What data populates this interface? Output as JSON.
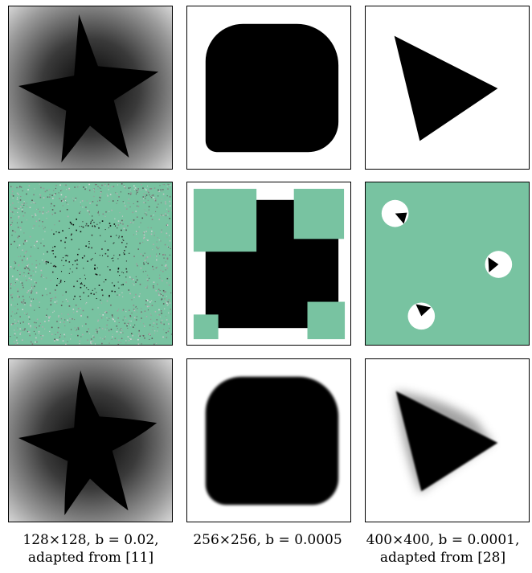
{
  "columns": [
    {
      "shape": "star",
      "caption_line1": "128×128, b = 0.02,",
      "caption_line2": "adapted from [11]"
    },
    {
      "shape": "rounded-square",
      "caption_line1": "256×256, b = 0.0005",
      "caption_line2": ""
    },
    {
      "shape": "triangle",
      "caption_line1": "400×400, b = 0.0001,",
      "caption_line2": "adapted from [28]"
    }
  ],
  "rows": [
    "ground-truth",
    "masked-input",
    "reconstruction"
  ],
  "colors": {
    "mask": "#78c3a1",
    "shape": "#000000",
    "background": "#ffffff",
    "frame": "#000000"
  }
}
